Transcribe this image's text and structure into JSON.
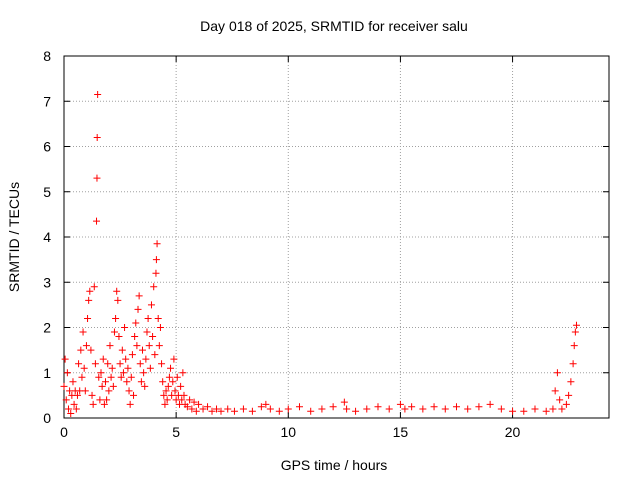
{
  "chart_data": {
    "type": "scatter",
    "title": "Day 018 of 2025, SRMTID for receiver salu",
    "xlabel": "GPS time / hours",
    "ylabel": "SRMTID / TECUs",
    "xlim": [
      0,
      24.3
    ],
    "ylim": [
      0,
      8
    ],
    "xticks": [
      0,
      5,
      10,
      15,
      20
    ],
    "yticks": [
      0,
      1,
      2,
      3,
      4,
      5,
      6,
      7,
      8
    ],
    "grid": true,
    "marker": "+",
    "color": "#ff0000",
    "series": [
      {
        "name": "SRMTID",
        "points": [
          [
            0.0,
            0.7
          ],
          [
            0.05,
            1.3
          ],
          [
            0.1,
            0.4
          ],
          [
            0.15,
            1.0
          ],
          [
            0.2,
            0.2
          ],
          [
            0.25,
            0.6
          ],
          [
            0.3,
            0.1
          ],
          [
            0.35,
            0.5
          ],
          [
            0.4,
            0.8
          ],
          [
            0.45,
            0.3
          ],
          [
            0.5,
            0.6
          ],
          [
            0.55,
            0.2
          ],
          [
            0.6,
            0.5
          ],
          [
            0.65,
            1.2
          ],
          [
            0.7,
            0.6
          ],
          [
            0.75,
            1.5
          ],
          [
            0.8,
            0.9
          ],
          [
            0.85,
            1.9
          ],
          [
            0.9,
            1.1
          ],
          [
            0.95,
            0.6
          ],
          [
            1.0,
            1.6
          ],
          [
            1.05,
            2.2
          ],
          [
            1.1,
            2.6
          ],
          [
            1.15,
            2.8
          ],
          [
            1.2,
            1.5
          ],
          [
            1.25,
            0.5
          ],
          [
            1.3,
            0.3
          ],
          [
            1.35,
            2.9
          ],
          [
            1.4,
            1.2
          ],
          [
            1.45,
            4.35
          ],
          [
            1.47,
            5.3
          ],
          [
            1.48,
            6.2
          ],
          [
            1.5,
            7.15
          ],
          [
            1.55,
            0.9
          ],
          [
            1.6,
            0.4
          ],
          [
            1.65,
            1.0
          ],
          [
            1.7,
            0.7
          ],
          [
            1.75,
            1.3
          ],
          [
            1.8,
            0.3
          ],
          [
            1.85,
            0.8
          ],
          [
            1.9,
            0.4
          ],
          [
            1.95,
            1.2
          ],
          [
            2.0,
            0.6
          ],
          [
            2.05,
            1.6
          ],
          [
            2.1,
            0.9
          ],
          [
            2.15,
            1.1
          ],
          [
            2.2,
            0.7
          ],
          [
            2.25,
            1.9
          ],
          [
            2.3,
            2.2
          ],
          [
            2.35,
            2.8
          ],
          [
            2.4,
            2.6
          ],
          [
            2.45,
            1.8
          ],
          [
            2.5,
            1.2
          ],
          [
            2.55,
            0.9
          ],
          [
            2.6,
            1.5
          ],
          [
            2.65,
            1.0
          ],
          [
            2.7,
            2.0
          ],
          [
            2.75,
            1.3
          ],
          [
            2.8,
            0.8
          ],
          [
            2.85,
            1.1
          ],
          [
            2.9,
            0.6
          ],
          [
            2.95,
            0.3
          ],
          [
            3.0,
            0.9
          ],
          [
            3.05,
            1.4
          ],
          [
            3.1,
            0.5
          ],
          [
            3.15,
            1.8
          ],
          [
            3.2,
            2.1
          ],
          [
            3.25,
            1.6
          ],
          [
            3.3,
            2.4
          ],
          [
            3.35,
            2.7
          ],
          [
            3.4,
            1.2
          ],
          [
            3.45,
            0.8
          ],
          [
            3.5,
            1.5
          ],
          [
            3.55,
            1.0
          ],
          [
            3.6,
            0.7
          ],
          [
            3.65,
            1.3
          ],
          [
            3.7,
            1.9
          ],
          [
            3.75,
            2.2
          ],
          [
            3.8,
            1.6
          ],
          [
            3.85,
            1.1
          ],
          [
            3.9,
            2.5
          ],
          [
            3.95,
            1.8
          ],
          [
            4.0,
            2.9
          ],
          [
            4.05,
            1.4
          ],
          [
            4.1,
            3.2
          ],
          [
            4.12,
            3.5
          ],
          [
            4.15,
            3.85
          ],
          [
            4.2,
            2.2
          ],
          [
            4.25,
            1.6
          ],
          [
            4.3,
            2.0
          ],
          [
            4.35,
            1.2
          ],
          [
            4.4,
            0.8
          ],
          [
            4.45,
            0.5
          ],
          [
            4.5,
            0.3
          ],
          [
            4.55,
            0.6
          ],
          [
            4.6,
            0.4
          ],
          [
            4.65,
            0.7
          ],
          [
            4.7,
            0.9
          ],
          [
            4.75,
            1.1
          ],
          [
            4.8,
            0.5
          ],
          [
            4.85,
            0.8
          ],
          [
            4.9,
            1.3
          ],
          [
            4.95,
            0.6
          ],
          [
            5.0,
            0.4
          ],
          [
            5.05,
            0.9
          ],
          [
            5.1,
            0.5
          ],
          [
            5.15,
            0.3
          ],
          [
            5.2,
            0.7
          ],
          [
            5.25,
            0.4
          ],
          [
            5.3,
            1.0
          ],
          [
            5.35,
            0.5
          ],
          [
            5.4,
            0.3
          ],
          [
            5.5,
            0.25
          ],
          [
            5.6,
            0.4
          ],
          [
            5.7,
            0.2
          ],
          [
            5.8,
            0.35
          ],
          [
            5.9,
            0.15
          ],
          [
            6.0,
            0.3
          ],
          [
            6.2,
            0.2
          ],
          [
            6.4,
            0.25
          ],
          [
            6.6,
            0.15
          ],
          [
            6.8,
            0.2
          ],
          [
            7.0,
            0.15
          ],
          [
            7.3,
            0.2
          ],
          [
            7.6,
            0.15
          ],
          [
            8.0,
            0.2
          ],
          [
            8.4,
            0.15
          ],
          [
            8.8,
            0.25
          ],
          [
            9.0,
            0.3
          ],
          [
            9.2,
            0.2
          ],
          [
            9.6,
            0.15
          ],
          [
            10.0,
            0.2
          ],
          [
            10.5,
            0.25
          ],
          [
            11.0,
            0.15
          ],
          [
            11.5,
            0.2
          ],
          [
            12.0,
            0.25
          ],
          [
            12.5,
            0.35
          ],
          [
            12.6,
            0.2
          ],
          [
            13.0,
            0.15
          ],
          [
            13.5,
            0.2
          ],
          [
            14.0,
            0.25
          ],
          [
            14.5,
            0.2
          ],
          [
            15.0,
            0.3
          ],
          [
            15.2,
            0.2
          ],
          [
            15.5,
            0.25
          ],
          [
            16.0,
            0.2
          ],
          [
            16.5,
            0.25
          ],
          [
            17.0,
            0.2
          ],
          [
            17.5,
            0.25
          ],
          [
            18.0,
            0.2
          ],
          [
            18.5,
            0.25
          ],
          [
            19.0,
            0.3
          ],
          [
            19.5,
            0.2
          ],
          [
            20.0,
            0.15
          ],
          [
            20.5,
            0.15
          ],
          [
            21.0,
            0.2
          ],
          [
            21.5,
            0.15
          ],
          [
            21.8,
            0.2
          ],
          [
            21.9,
            0.6
          ],
          [
            22.0,
            1.0
          ],
          [
            22.1,
            0.4
          ],
          [
            22.2,
            0.2
          ],
          [
            22.4,
            0.3
          ],
          [
            22.5,
            0.5
          ],
          [
            22.6,
            0.8
          ],
          [
            22.7,
            1.2
          ],
          [
            22.75,
            1.6
          ],
          [
            22.8,
            1.9
          ],
          [
            22.85,
            2.05
          ]
        ]
      }
    ]
  }
}
